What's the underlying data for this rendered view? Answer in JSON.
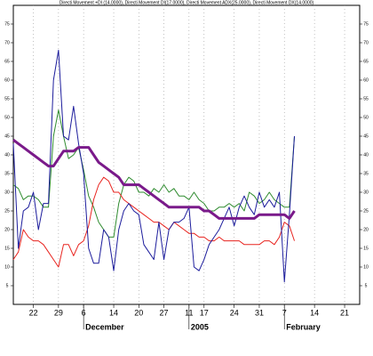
{
  "chart_data": {
    "type": "line",
    "title": "Directi Movement +DI (14.0000), Directi Movement DI(17.0000), Directi Movement ADX(25.0000), Directi Movement DX(14.0000)",
    "x": [
      0,
      1,
      2,
      3,
      4,
      5,
      6,
      7,
      8,
      9,
      10,
      11,
      12,
      13,
      14,
      15,
      16,
      17,
      18,
      19,
      20,
      21,
      22,
      23,
      24,
      25,
      26,
      27,
      28,
      29,
      30,
      31,
      32,
      33,
      34,
      35,
      36,
      37,
      38,
      39,
      40,
      41,
      42,
      43,
      44,
      45,
      46,
      47,
      48,
      49,
      50,
      51,
      52,
      53,
      54,
      55,
      56
    ],
    "xlim": [
      0,
      69
    ],
    "xticks": [
      {
        "value": 4,
        "label": "22"
      },
      {
        "value": 9,
        "label": "29"
      },
      {
        "value": 14,
        "label": "6"
      },
      {
        "value": 20,
        "label": "14"
      },
      {
        "value": 25,
        "label": "20"
      },
      {
        "value": 30,
        "label": "27"
      },
      {
        "value": 35,
        "label": "11"
      },
      {
        "value": 38,
        "label": "17"
      },
      {
        "value": 44,
        "label": "24"
      },
      {
        "value": 49,
        "label": "31"
      },
      {
        "value": 54,
        "label": "7"
      },
      {
        "value": 60,
        "label": "14"
      },
      {
        "value": 66,
        "label": "21"
      }
    ],
    "x_group_labels": [
      {
        "value": 14,
        "label": "December"
      },
      {
        "value": 35,
        "label": "2005"
      },
      {
        "value": 54,
        "label": "February"
      }
    ],
    "ylim": [
      0,
      80
    ],
    "yticks": [
      5,
      10,
      15,
      20,
      25,
      30,
      35,
      40,
      45,
      50,
      55,
      60,
      65,
      70,
      75
    ],
    "grid": true,
    "series": [
      {
        "color": "#2e8b2e",
        "width": 1,
        "values": [
          32,
          31,
          28,
          29,
          29,
          28,
          26,
          26,
          45,
          52,
          45,
          39,
          40,
          42,
          36,
          29,
          26,
          22,
          20,
          18,
          18,
          27,
          32,
          34,
          33,
          30,
          30,
          29,
          31,
          30,
          32,
          30,
          31,
          29,
          29,
          28,
          30,
          28,
          27,
          25,
          25,
          26,
          26,
          27,
          26,
          27,
          25,
          30,
          29,
          27,
          28,
          30,
          28,
          27,
          26,
          26,
          45
        ]
      },
      {
        "color": "#e8231e",
        "width": 1,
        "values": [
          12,
          14,
          20,
          18,
          17,
          17,
          16,
          14,
          12,
          10,
          16,
          16,
          13,
          16,
          17,
          21,
          28,
          32,
          34,
          33,
          30,
          30,
          28,
          27,
          26,
          25,
          24,
          23,
          22,
          22,
          21,
          20,
          22,
          21,
          20,
          19,
          19,
          18,
          18,
          17,
          17,
          18,
          17,
          17,
          17,
          17,
          16,
          16,
          16,
          16,
          17,
          17,
          16,
          18,
          22,
          21,
          17
        ]
      },
      {
        "color": "#1c1c9c",
        "width": 1,
        "values": [
          43,
          15,
          25,
          26,
          30,
          20,
          27,
          27,
          60,
          68,
          45,
          44,
          53,
          43,
          35,
          15,
          11,
          11,
          20,
          18,
          9,
          20,
          25,
          27,
          25,
          24,
          16,
          14,
          12,
          22,
          12,
          20,
          22,
          22,
          23,
          26,
          10,
          9,
          12,
          16,
          18,
          20,
          23,
          26,
          21,
          26,
          29,
          26,
          24,
          30,
          26,
          28,
          26,
          30,
          6,
          24,
          45
        ]
      },
      {
        "color": "#7a1a8a",
        "width": 3,
        "values": [
          44,
          43,
          42,
          41,
          40,
          39,
          38,
          37,
          37,
          39,
          41,
          41,
          41,
          42,
          42,
          42,
          40,
          38,
          37,
          36,
          35,
          34,
          32,
          32,
          32,
          32,
          31,
          30,
          29,
          28,
          27,
          26,
          26,
          26,
          26,
          26,
          26,
          26,
          25,
          25,
          24,
          23,
          23,
          23,
          23,
          23,
          23,
          23,
          23,
          24,
          24,
          24,
          24,
          24,
          24,
          23,
          25
        ]
      }
    ]
  }
}
